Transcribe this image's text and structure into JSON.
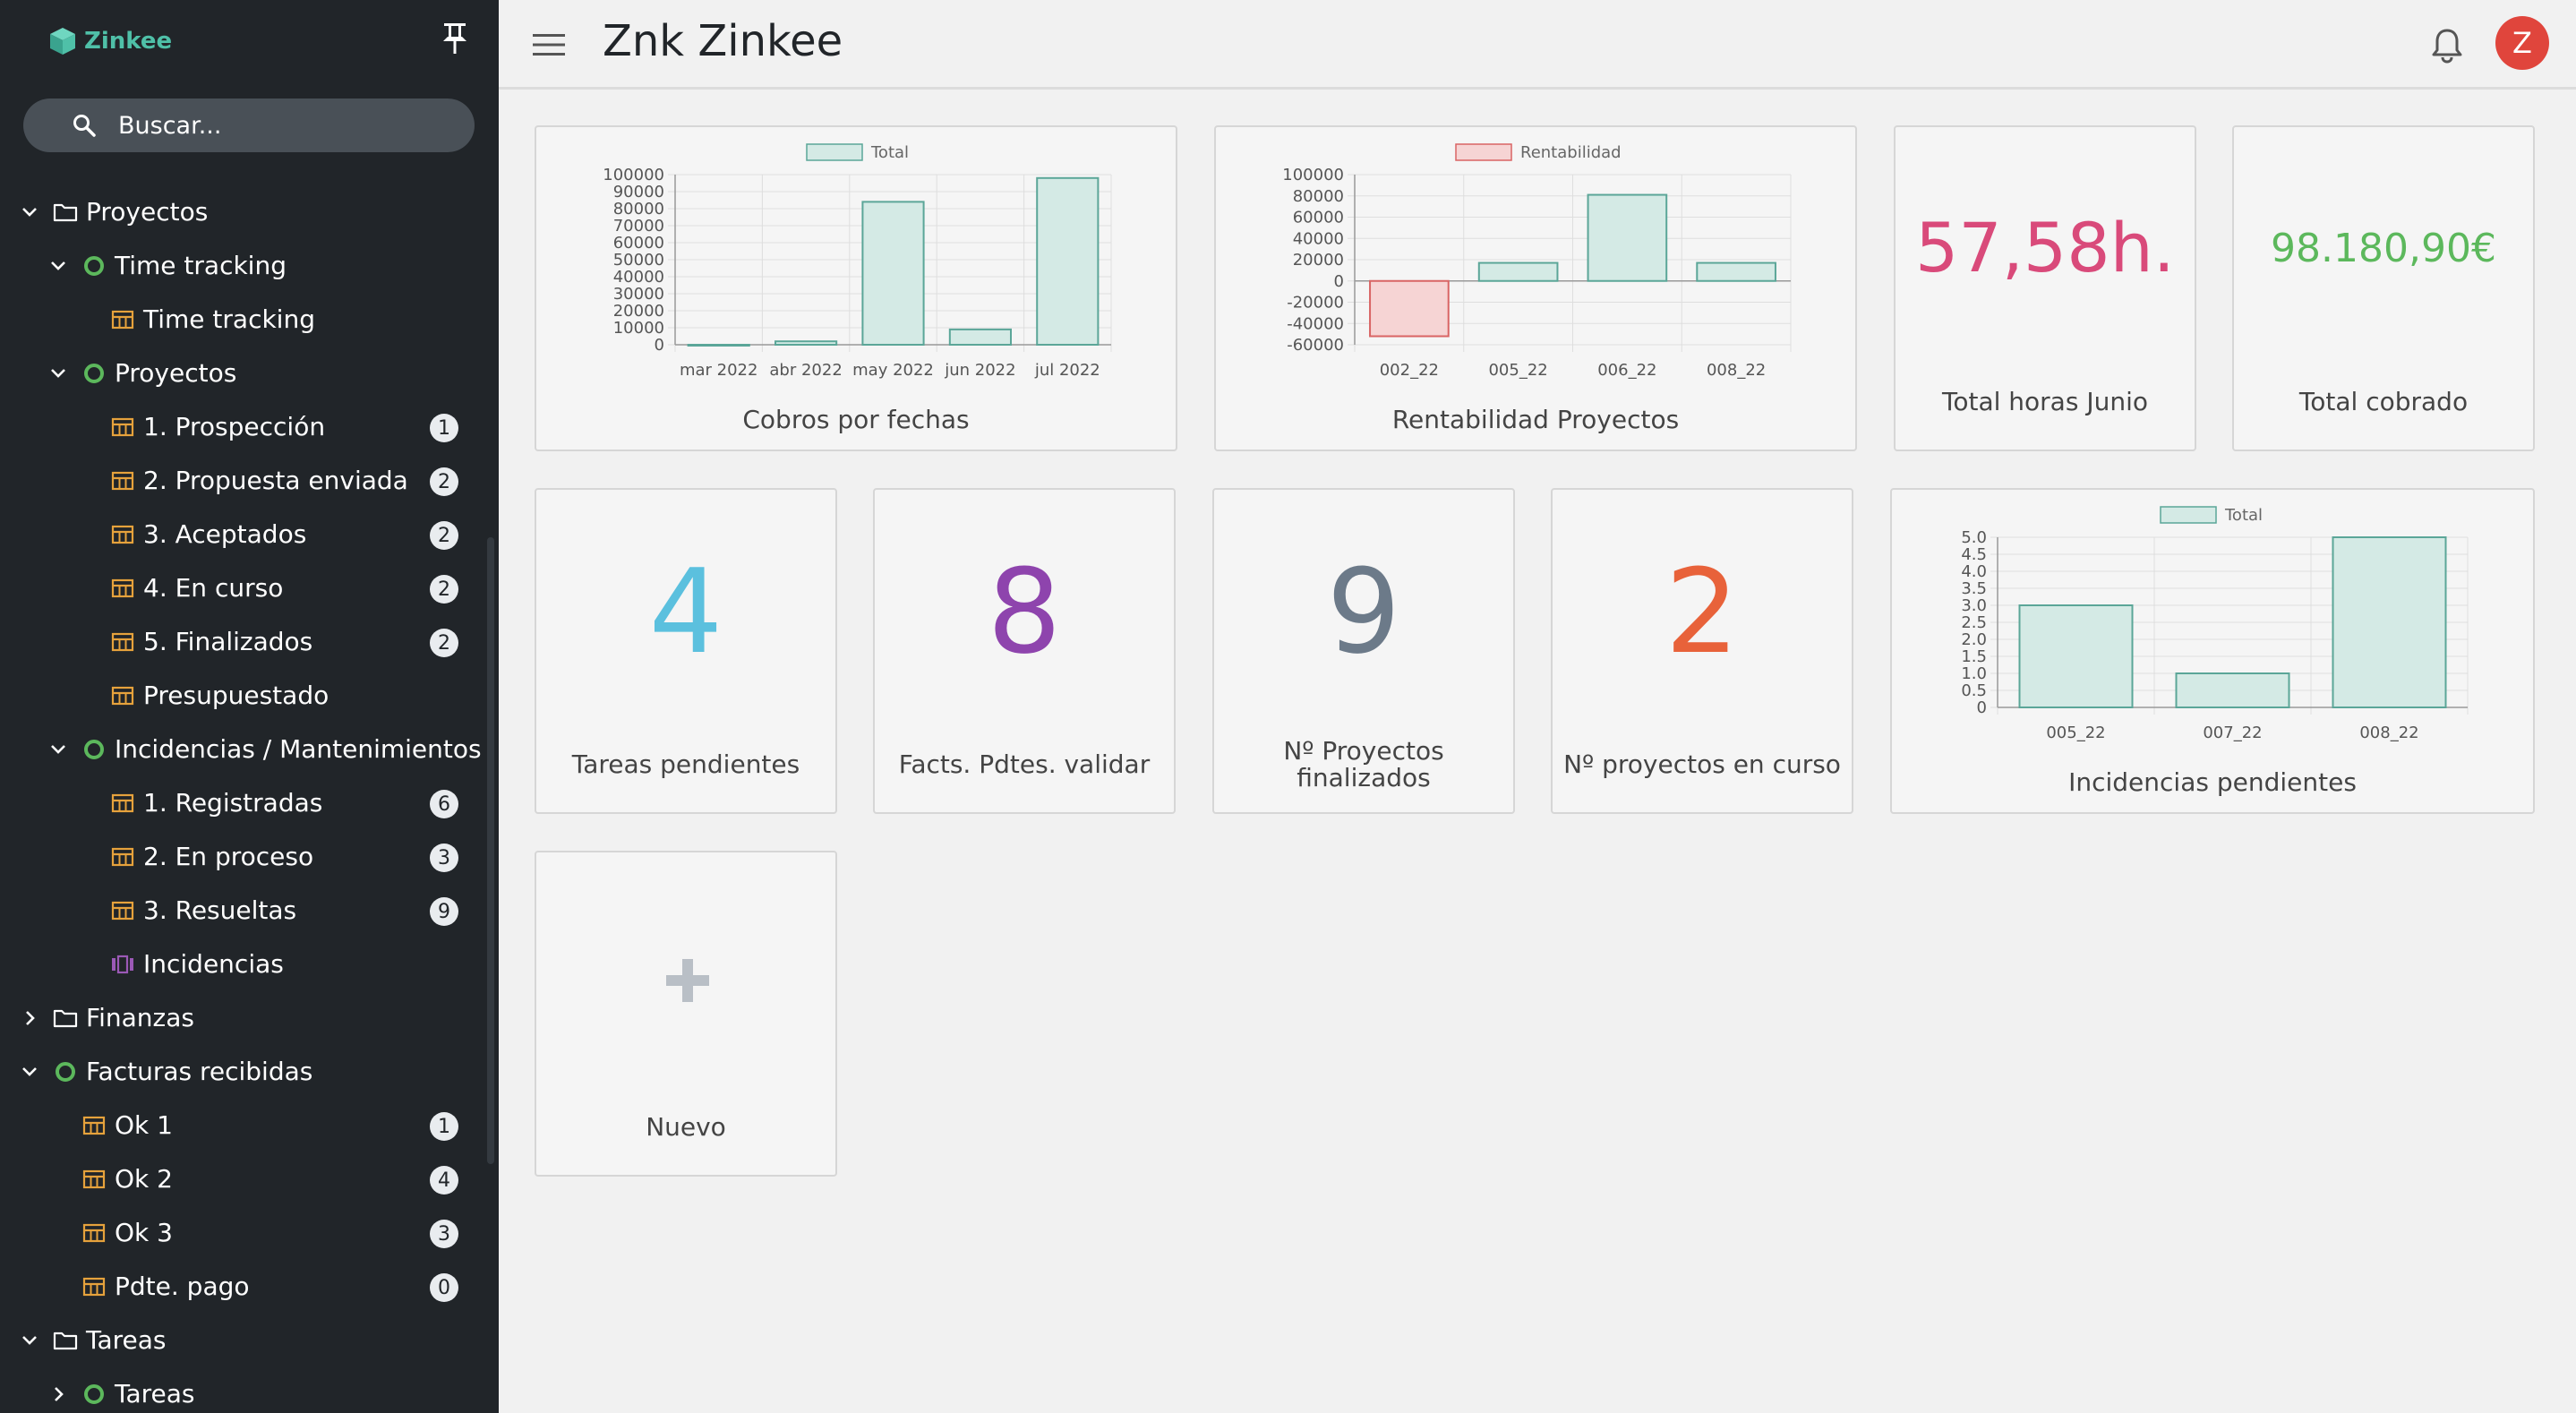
{
  "app": {
    "logo_text": "Zinkee",
    "page_title": "Znk Zinkee",
    "avatar_initial": "Z"
  },
  "colors": {
    "sidebar_bg": "#212529",
    "accent": "#4fc0a8",
    "table_icon": "#e6a23c",
    "status_green": "#5cb85c",
    "view_icon": "#9b59b6",
    "avatar": "#e0453c"
  },
  "search": {
    "placeholder": "Buscar..."
  },
  "sidebar": {
    "items": [
      {
        "label": "Proyectos",
        "icon": "folder-icon",
        "level": 0,
        "chevron": "down"
      },
      {
        "label": "Time tracking",
        "icon": "status-circle-icon",
        "level": 1,
        "chevron": "down"
      },
      {
        "label": "Time tracking",
        "icon": "table-icon",
        "level": 2,
        "chevron": ""
      },
      {
        "label": "Proyectos",
        "icon": "status-circle-icon",
        "level": 1,
        "chevron": "down"
      },
      {
        "label": "1. Prospección",
        "icon": "table-icon",
        "level": 2,
        "chevron": "",
        "badge": "1"
      },
      {
        "label": "2. Propuesta enviada",
        "icon": "table-icon",
        "level": 2,
        "chevron": "",
        "badge": "2"
      },
      {
        "label": "3. Aceptados",
        "icon": "table-icon",
        "level": 2,
        "chevron": "",
        "badge": "2"
      },
      {
        "label": "4. En curso",
        "icon": "table-icon",
        "level": 2,
        "chevron": "",
        "badge": "2"
      },
      {
        "label": "5. Finalizados",
        "icon": "table-icon",
        "level": 2,
        "chevron": "",
        "badge": "2"
      },
      {
        "label": "Presupuestado",
        "icon": "table-icon",
        "level": 2,
        "chevron": ""
      },
      {
        "label": "Incidencias / Mantenimientos",
        "icon": "status-circle-icon",
        "level": 1,
        "chevron": "down"
      },
      {
        "label": "1. Registradas",
        "icon": "table-icon",
        "level": 2,
        "chevron": "",
        "badge": "6"
      },
      {
        "label": "2. En proceso",
        "icon": "table-icon",
        "level": 2,
        "chevron": "",
        "badge": "3"
      },
      {
        "label": "3. Resueltas",
        "icon": "table-icon",
        "level": 2,
        "chevron": "",
        "badge": "9"
      },
      {
        "label": "Incidencias",
        "icon": "kanban-icon",
        "level": 2,
        "chevron": ""
      },
      {
        "label": "Finanzas",
        "icon": "folder-icon",
        "level": 0,
        "chevron": "right"
      },
      {
        "label": "Facturas recibidas",
        "icon": "status-circle-icon",
        "level": 0,
        "chevron": "down"
      },
      {
        "label": "Ok 1",
        "icon": "table-icon",
        "level": 1,
        "chevron": "",
        "badge": "1"
      },
      {
        "label": "Ok 2",
        "icon": "table-icon",
        "level": 1,
        "chevron": "",
        "badge": "4"
      },
      {
        "label": "Ok 3",
        "icon": "table-icon",
        "level": 1,
        "chevron": "",
        "badge": "3"
      },
      {
        "label": "Pdte. pago",
        "icon": "table-icon",
        "level": 1,
        "chevron": "",
        "badge": "0"
      },
      {
        "label": "Tareas",
        "icon": "folder-icon",
        "level": 0,
        "chevron": "down"
      },
      {
        "label": "Tareas",
        "icon": "status-circle-icon",
        "level": 1,
        "chevron": "right"
      }
    ]
  },
  "widgets": {
    "cobros": {
      "title": "Cobros por fechas"
    },
    "rentabilidad": {
      "title": "Rentabilidad Proyectos"
    },
    "horas": {
      "value": "57,58h.",
      "title": "Total horas Junio",
      "color": "#d94a7a"
    },
    "cobrado": {
      "value": "98.180,90€",
      "title": "Total cobrado",
      "color": "#5cb85c"
    },
    "tareas": {
      "value": "4",
      "title": "Tareas pendientes",
      "color": "#5bc0de"
    },
    "facts": {
      "value": "8",
      "title": "Facts. Pdtes. validar",
      "color": "#8e44ad"
    },
    "proyectos_fin": {
      "value": "9",
      "title_line1": "Nº Proyectos",
      "title_line2": "finalizados",
      "color": "#6c7a89"
    },
    "proyectos_curso": {
      "value": "2",
      "title": "Nº proyectos en curso",
      "color": "#e8623a"
    },
    "incidencias": {
      "title": "Incidencias pendientes"
    },
    "nuevo": {
      "title": "Nuevo",
      "icon": "plus-icon"
    }
  },
  "chart_data": [
    {
      "id": "cobros",
      "type": "bar",
      "title": "Cobros por fechas",
      "categories": [
        "mar 2022",
        "abr 2022",
        "may 2022",
        "jun 2022",
        "jul 2022"
      ],
      "series": [
        {
          "name": "Total",
          "values": [
            0,
            2000,
            84000,
            9000,
            98000
          ],
          "color": "#d4eae5",
          "border": "#5ba698"
        }
      ],
      "ylim": [
        0,
        100000
      ],
      "yticks": [
        "100000",
        "90000",
        "80000",
        "70000",
        "60000",
        "50000",
        "40000",
        "30000",
        "20000",
        "10000",
        "0"
      ],
      "legend": "top",
      "grid": true
    },
    {
      "id": "rentabilidad",
      "type": "bar",
      "title": "Rentabilidad Proyectos",
      "categories": [
        "002_22",
        "005_22",
        "006_22",
        "008_22"
      ],
      "series": [
        {
          "name": "Rentabilidad",
          "values": [
            -52000,
            17000,
            81000,
            17000
          ],
          "color": "#d4eae5",
          "border": "#5ba698",
          "negative_color": "#f6d4d4",
          "negative_border": "#d96464"
        }
      ],
      "ylim": [
        -60000,
        100000
      ],
      "yticks": [
        "100000",
        "80000",
        "60000",
        "40000",
        "20000",
        "0",
        "-20000",
        "-40000",
        "-60000"
      ],
      "legend": "top",
      "legend_color": "#f6d4d4",
      "legend_border": "#d96464",
      "grid": true
    },
    {
      "id": "incidencias",
      "type": "bar",
      "title": "Incidencias pendientes",
      "categories": [
        "005_22",
        "007_22",
        "008_22"
      ],
      "series": [
        {
          "name": "Total",
          "values": [
            3,
            1,
            5
          ],
          "color": "#d4eae5",
          "border": "#5ba698"
        }
      ],
      "ylim": [
        0,
        5
      ],
      "yticks": [
        "5.0",
        "4.5",
        "4.0",
        "3.5",
        "3.0",
        "2.5",
        "2.0",
        "1.5",
        "1.0",
        "0.5",
        "0"
      ],
      "legend": "top",
      "grid": true
    }
  ]
}
